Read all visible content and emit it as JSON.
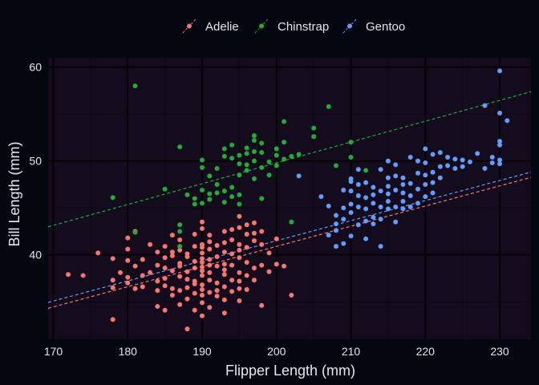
{
  "colors": {
    "page_bg": "#02060f",
    "panel_bg": "#140c1d",
    "grid_major": "#000000",
    "grid_minor": "#0c0712",
    "axis_text": "#e6e6ea",
    "legend_text": "#e6e6ea",
    "Adelie": "#f8766d",
    "Chinstrap": "#1fae33",
    "Gentoo": "#619cff"
  },
  "chart_data": {
    "type": "scatter",
    "title": "",
    "xlabel": "Flipper Length (mm)",
    "ylabel": "Bill Length (mm)",
    "xlim": [
      169.3,
      234.2
    ],
    "ylim": [
      31.0,
      61.0
    ],
    "xticks": [
      170,
      180,
      190,
      200,
      210,
      220,
      230
    ],
    "yticks": [
      40,
      50,
      60
    ],
    "grid": true,
    "legend_position": "top",
    "series": [
      {
        "name": "Adelie",
        "trend": {
          "slope": 0.215,
          "intercept": -2.1
        },
        "points": [
          [
            172,
            37.9
          ],
          [
            174,
            37.8
          ],
          [
            176,
            40.2
          ],
          [
            178,
            33.1
          ],
          [
            178,
            36.5
          ],
          [
            178,
            37.3
          ],
          [
            178,
            39.6
          ],
          [
            179,
            38.1
          ],
          [
            180,
            37.6
          ],
          [
            180,
            39.4
          ],
          [
            180,
            40.6
          ],
          [
            180,
            41.8
          ],
          [
            180,
            37.0
          ],
          [
            181,
            38.8
          ],
          [
            181,
            36.4
          ],
          [
            181,
            42.5
          ],
          [
            182,
            37.8
          ],
          [
            182,
            39.5
          ],
          [
            182,
            36.6
          ],
          [
            183,
            38.1
          ],
          [
            183,
            41.1
          ],
          [
            184,
            36.2
          ],
          [
            184,
            38.9
          ],
          [
            184,
            40.3
          ],
          [
            184,
            37.2
          ],
          [
            184,
            34.5
          ],
          [
            185,
            34.1
          ],
          [
            185,
            38.6
          ],
          [
            185,
            39.7
          ],
          [
            185,
            36.7
          ],
          [
            185,
            40.9
          ],
          [
            185,
            37.5
          ],
          [
            186,
            36.4
          ],
          [
            186,
            38.3
          ],
          [
            186,
            39.9
          ],
          [
            186,
            35.7
          ],
          [
            186,
            40.3
          ],
          [
            186,
            42.1
          ],
          [
            187,
            34.7
          ],
          [
            187,
            37.7
          ],
          [
            187,
            38.8
          ],
          [
            187,
            40.5
          ],
          [
            187,
            36.2
          ],
          [
            187,
            41.6
          ],
          [
            187,
            39.1
          ],
          [
            188,
            32.1
          ],
          [
            188,
            35.3
          ],
          [
            188,
            37.4
          ],
          [
            188,
            38.2
          ],
          [
            188,
            39.8
          ],
          [
            188,
            40.1
          ],
          [
            188,
            36.5
          ],
          [
            189,
            34.1
          ],
          [
            189,
            36.9
          ],
          [
            189,
            38.6
          ],
          [
            189,
            39.3
          ],
          [
            189,
            40.9
          ],
          [
            189,
            42.2
          ],
          [
            189,
            37.2
          ],
          [
            189,
            35.9
          ],
          [
            190,
            33.5
          ],
          [
            190,
            34.9
          ],
          [
            190,
            35.7
          ],
          [
            190,
            36.8
          ],
          [
            190,
            37.8
          ],
          [
            190,
            38.3
          ],
          [
            190,
            38.7
          ],
          [
            190,
            39.2
          ],
          [
            190,
            39.6
          ],
          [
            190,
            40.2
          ],
          [
            190,
            40.8
          ],
          [
            190,
            41.1
          ],
          [
            190,
            42.8
          ],
          [
            190,
            43.5
          ],
          [
            190,
            36.3
          ],
          [
            191,
            34.4
          ],
          [
            191,
            36.0
          ],
          [
            191,
            37.3
          ],
          [
            191,
            38.1
          ],
          [
            191,
            38.9
          ],
          [
            191,
            39.5
          ],
          [
            191,
            40.6
          ],
          [
            191,
            41.4
          ],
          [
            191,
            42.1
          ],
          [
            192,
            35.6
          ],
          [
            192,
            37.0
          ],
          [
            192,
            38.8
          ],
          [
            192,
            39.8
          ],
          [
            192,
            41.0
          ],
          [
            192,
            36.2
          ],
          [
            193,
            33.8
          ],
          [
            193,
            35.2
          ],
          [
            193,
            36.6
          ],
          [
            193,
            37.9
          ],
          [
            193,
            39.0
          ],
          [
            193,
            40.3
          ],
          [
            193,
            41.3
          ],
          [
            193,
            42.5
          ],
          [
            193,
            38.4
          ],
          [
            194,
            36.1
          ],
          [
            194,
            37.3
          ],
          [
            194,
            38.9
          ],
          [
            194,
            40.1
          ],
          [
            194,
            41.6
          ],
          [
            194,
            42.7
          ],
          [
            195,
            35.1
          ],
          [
            195,
            36.4
          ],
          [
            195,
            37.2
          ],
          [
            195,
            38.1
          ],
          [
            195,
            39.7
          ],
          [
            195,
            40.5
          ],
          [
            195,
            41.1
          ],
          [
            195,
            42.9
          ],
          [
            195,
            44.1
          ],
          [
            196,
            36.3
          ],
          [
            196,
            37.8
          ],
          [
            196,
            39.2
          ],
          [
            196,
            40.8
          ],
          [
            196,
            42.2
          ],
          [
            196,
            43.2
          ],
          [
            197,
            37.3
          ],
          [
            197,
            38.6
          ],
          [
            197,
            41.5
          ],
          [
            197,
            42.3
          ],
          [
            197,
            43.4
          ],
          [
            198,
            34.6
          ],
          [
            198,
            38.9
          ],
          [
            198,
            41.1
          ],
          [
            198,
            42.5
          ],
          [
            199,
            38.2
          ],
          [
            199,
            40.2
          ],
          [
            200,
            39.0
          ],
          [
            200,
            41.7
          ],
          [
            201,
            38.8
          ],
          [
            202,
            35.7
          ]
        ]
      },
      {
        "name": "Chinstrap",
        "trend": {
          "slope": 0.222,
          "intercept": 5.4
        },
        "points": [
          [
            178,
            46.1
          ],
          [
            181,
            58.0
          ],
          [
            181,
            42.4
          ],
          [
            185,
            47.0
          ],
          [
            187,
            40.9
          ],
          [
            187,
            43.2
          ],
          [
            187,
            42.5
          ],
          [
            187,
            51.5
          ],
          [
            188,
            46.4
          ],
          [
            189,
            45.4
          ],
          [
            189,
            46.0
          ],
          [
            190,
            46.9
          ],
          [
            190,
            45.5
          ],
          [
            190,
            50.1
          ],
          [
            190,
            49.3
          ],
          [
            191,
            45.9
          ],
          [
            191,
            46.5
          ],
          [
            191,
            48.4
          ],
          [
            192,
            46.6
          ],
          [
            192,
            47.5
          ],
          [
            192,
            49.2
          ],
          [
            193,
            45.6
          ],
          [
            193,
            46.8
          ],
          [
            193,
            50.5
          ],
          [
            193,
            51.3
          ],
          [
            194,
            46.2
          ],
          [
            194,
            47.2
          ],
          [
            194,
            50.3
          ],
          [
            194,
            51.7
          ],
          [
            195,
            45.4
          ],
          [
            195,
            46.4
          ],
          [
            195,
            48.5
          ],
          [
            195,
            49.7
          ],
          [
            195,
            50.6
          ],
          [
            196,
            49.0
          ],
          [
            196,
            49.6
          ],
          [
            196,
            50.8
          ],
          [
            196,
            51.4
          ],
          [
            197,
            48.1
          ],
          [
            197,
            50.0
          ],
          [
            197,
            51.0
          ],
          [
            197,
            52.2
          ],
          [
            197,
            52.7
          ],
          [
            198,
            46.0
          ],
          [
            198,
            49.3
          ],
          [
            198,
            50.9
          ],
          [
            198,
            51.9
          ],
          [
            199,
            48.5
          ],
          [
            199,
            49.9
          ],
          [
            200,
            49.5
          ],
          [
            200,
            50.6
          ],
          [
            200,
            51.3
          ],
          [
            201,
            50.2
          ],
          [
            201,
            52.0
          ],
          [
            201,
            54.2
          ],
          [
            202,
            50.5
          ],
          [
            202,
            43.5
          ],
          [
            203,
            50.7
          ],
          [
            205,
            52.6
          ],
          [
            205,
            53.5
          ],
          [
            207,
            55.8
          ],
          [
            208,
            49.5
          ],
          [
            210,
            52.0
          ],
          [
            210,
            50.4
          ],
          [
            212,
            49.0
          ]
        ]
      },
      {
        "name": "Gentoo",
        "trend": {
          "slope": 0.214,
          "intercept": -1.3
        },
        "points": [
          [
            203,
            48.4
          ],
          [
            208,
            40.9
          ],
          [
            208,
            43.3
          ],
          [
            208,
            44.2
          ],
          [
            208,
            42.6
          ],
          [
            209,
            45.0
          ],
          [
            209,
            43.8
          ],
          [
            209,
            46.9
          ],
          [
            210,
            42.0
          ],
          [
            210,
            44.5
          ],
          [
            210,
            45.4
          ],
          [
            210,
            46.8
          ],
          [
            210,
            47.8
          ],
          [
            210,
            48.1
          ],
          [
            211,
            43.2
          ],
          [
            211,
            45.1
          ],
          [
            211,
            46.3
          ],
          [
            211,
            49.1
          ],
          [
            212,
            41.7
          ],
          [
            212,
            43.6
          ],
          [
            212,
            44.9
          ],
          [
            212,
            46.1
          ],
          [
            212,
            47.7
          ],
          [
            213,
            43.3
          ],
          [
            213,
            44.0
          ],
          [
            213,
            45.5
          ],
          [
            213,
            46.4
          ],
          [
            213,
            47.2
          ],
          [
            214,
            40.9
          ],
          [
            214,
            43.8
          ],
          [
            214,
            45.1
          ],
          [
            214,
            46.8
          ],
          [
            214,
            49.1
          ],
          [
            215,
            44.9
          ],
          [
            215,
            45.7
          ],
          [
            215,
            46.5
          ],
          [
            215,
            47.3
          ],
          [
            215,
            48.2
          ],
          [
            215,
            50.0
          ],
          [
            216,
            43.5
          ],
          [
            216,
            45.1
          ],
          [
            216,
            46.9
          ],
          [
            216,
            48.4
          ],
          [
            216,
            49.6
          ],
          [
            217,
            44.9
          ],
          [
            217,
            45.7
          ],
          [
            217,
            46.6
          ],
          [
            217,
            47.5
          ],
          [
            217,
            48.2
          ],
          [
            218,
            45.1
          ],
          [
            218,
            46.3
          ],
          [
            218,
            47.6
          ],
          [
            218,
            50.4
          ],
          [
            219,
            45.5
          ],
          [
            219,
            47.0
          ],
          [
            219,
            48.7
          ],
          [
            219,
            50.0
          ],
          [
            220,
            46.2
          ],
          [
            220,
            47.5
          ],
          [
            220,
            48.5
          ],
          [
            220,
            49.8
          ],
          [
            220,
            51.3
          ],
          [
            221,
            46.6
          ],
          [
            221,
            47.7
          ],
          [
            221,
            48.8
          ],
          [
            221,
            50.7
          ],
          [
            222,
            48.2
          ],
          [
            222,
            49.4
          ],
          [
            222,
            50.9
          ],
          [
            223,
            49.5
          ],
          [
            223,
            50.4
          ],
          [
            224,
            49.2
          ],
          [
            224,
            50.2
          ],
          [
            225,
            49.4
          ],
          [
            225,
            50.1
          ],
          [
            226,
            49.9
          ],
          [
            227,
            50.8
          ],
          [
            228,
            49.2
          ],
          [
            228,
            55.9
          ],
          [
            229,
            49.8
          ],
          [
            229,
            50.4
          ],
          [
            230,
            49.7
          ],
          [
            230,
            50.1
          ],
          [
            230,
            51.7
          ],
          [
            230,
            52.1
          ],
          [
            230,
            55.1
          ],
          [
            230,
            59.6
          ],
          [
            231,
            54.3
          ],
          [
            207,
            42.1
          ],
          [
            207,
            45.2
          ],
          [
            206,
            46.2
          ],
          [
            209,
            41.2
          ],
          [
            211,
            47.5
          ]
        ]
      }
    ]
  }
}
